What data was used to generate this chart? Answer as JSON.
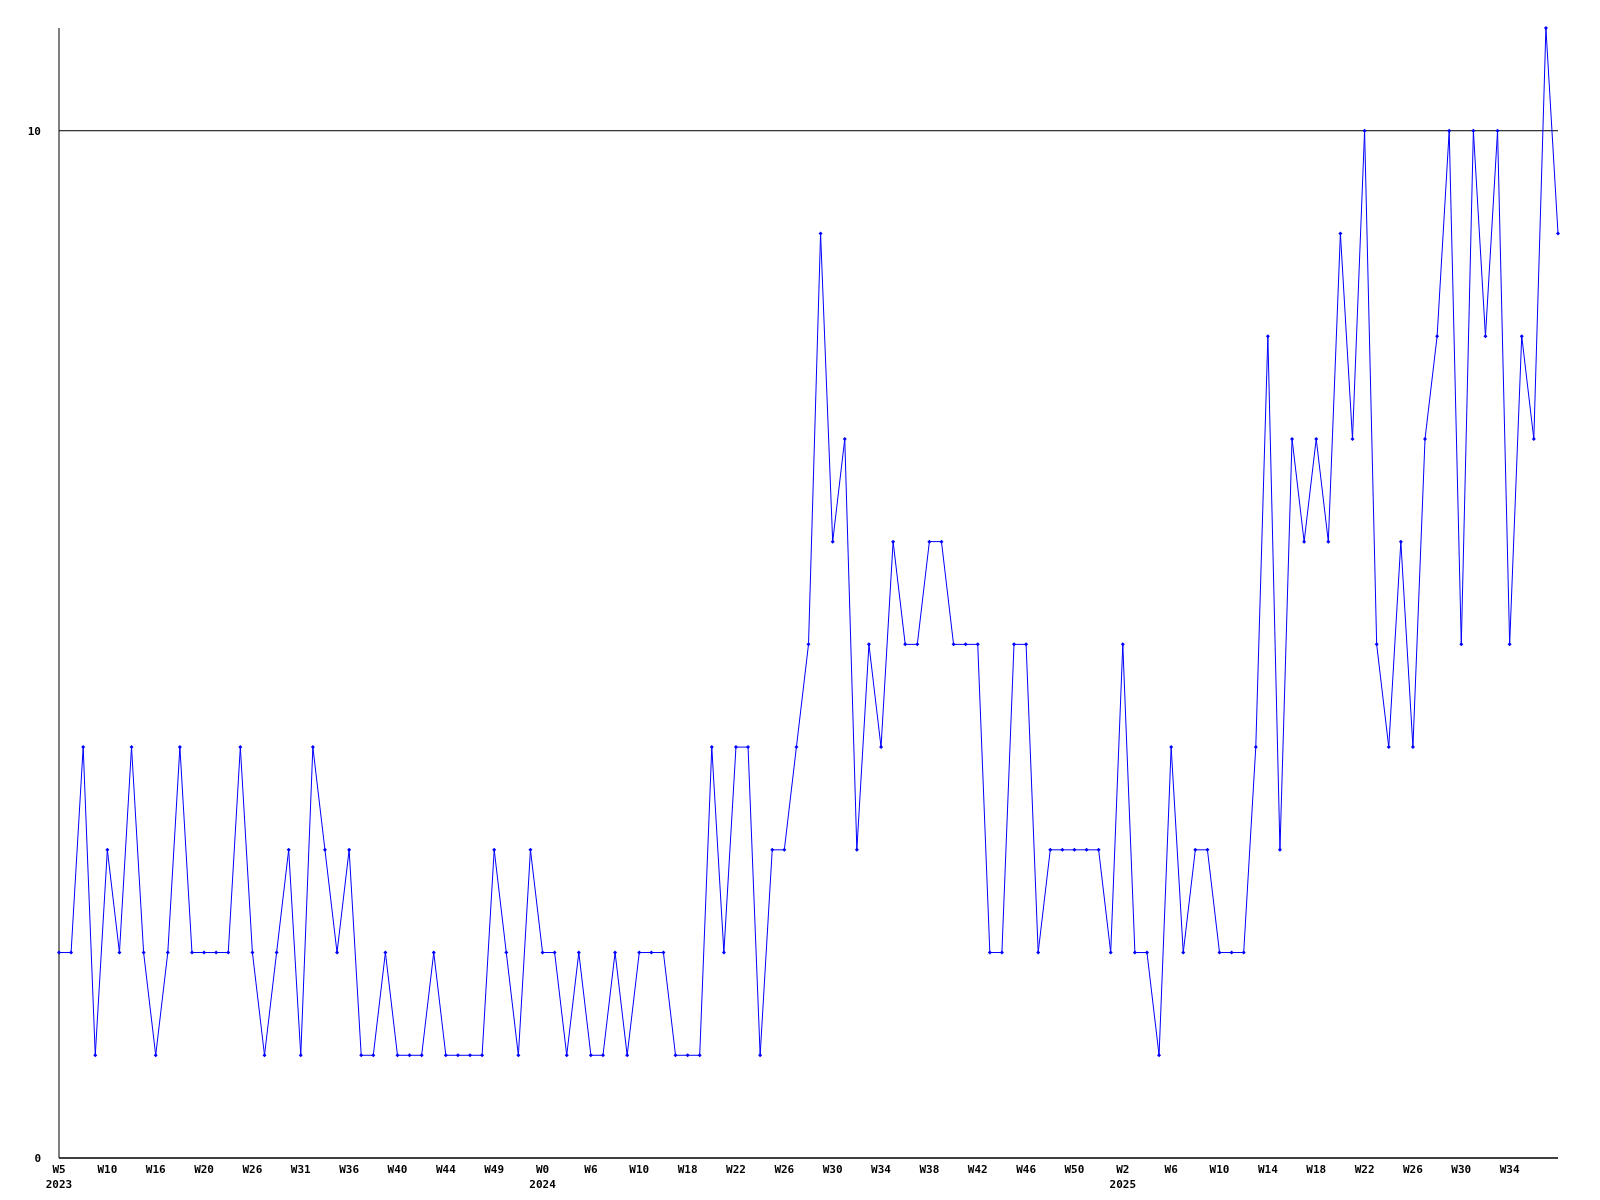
{
  "chart_data": {
    "type": "line",
    "categories": [
      "W5\n2023",
      null,
      null,
      null,
      "W10",
      null,
      null,
      null,
      "W16",
      null,
      null,
      null,
      "W20",
      null,
      null,
      null,
      "W26",
      null,
      null,
      null,
      "W31",
      null,
      null,
      null,
      "W36",
      null,
      null,
      null,
      "W40",
      null,
      null,
      null,
      "W44",
      null,
      null,
      null,
      "W49",
      null,
      null,
      null,
      "W0\n2024",
      null,
      null,
      null,
      "W6",
      null,
      null,
      null,
      "W10",
      null,
      null,
      null,
      "W18",
      null,
      null,
      null,
      "W22",
      null,
      null,
      null,
      "W26",
      null,
      null,
      null,
      "W30",
      null,
      null,
      null,
      "W34",
      null,
      null,
      null,
      "W38",
      null,
      null,
      null,
      "W42",
      null,
      null,
      null,
      "W46",
      null,
      null,
      null,
      "W50",
      null,
      null,
      null,
      "W2\n2025",
      null,
      null,
      null,
      "W6",
      null,
      null,
      null,
      "W10",
      null,
      null,
      null,
      "W14",
      null,
      null,
      null,
      "W18",
      null,
      null,
      null,
      "W22",
      null,
      null,
      null,
      "W26",
      null,
      null,
      null,
      "W30",
      null,
      null,
      null,
      "W34",
      null,
      null,
      null,
      null
    ],
    "series": [
      {
        "color": "#0000ff",
        "values": [
          2,
          2,
          4,
          1,
          3,
          2,
          4,
          2,
          1,
          2,
          4,
          2,
          2,
          2,
          2,
          4,
          2,
          1,
          2,
          3,
          1,
          4,
          3,
          2,
          3,
          1,
          1,
          2,
          1,
          1,
          1,
          2,
          1,
          1,
          1,
          1,
          3,
          2,
          1,
          3,
          2,
          2,
          1,
          2,
          1,
          1,
          2,
          1,
          2,
          2,
          2,
          1,
          1,
          1,
          4,
          2,
          4,
          4,
          1,
          3,
          3,
          4,
          5,
          9,
          6,
          7,
          3,
          5,
          4,
          6,
          5,
          5,
          6,
          6,
          5,
          5,
          5,
          2,
          2,
          5,
          5,
          2,
          3,
          3,
          3,
          3,
          3,
          2,
          5,
          2,
          2,
          1,
          4,
          2,
          3,
          3,
          2,
          2,
          2,
          4,
          8,
          3,
          7,
          6,
          7,
          6,
          9,
          7,
          10,
          5,
          4,
          6,
          4,
          7,
          8,
          10,
          5,
          10,
          8,
          10,
          5,
          8,
          7,
          11,
          9
        ]
      }
    ],
    "ylim": [
      0,
      11
    ],
    "yticks": [
      0,
      10
    ],
    "grid": "y",
    "marker": "diamond",
    "line_style": "solid"
  }
}
